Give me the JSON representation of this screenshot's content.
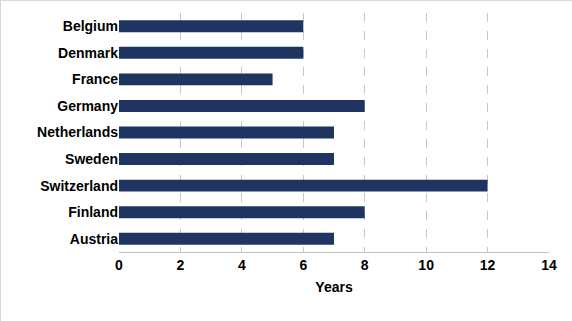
{
  "chart_data": {
    "type": "bar",
    "orientation": "horizontal",
    "categories": [
      "Belgium",
      "Denmark",
      "France",
      "Germany",
      "Netherlands",
      "Sweden",
      "Switzerland",
      "Finland",
      "Austria"
    ],
    "values": [
      6,
      6,
      5,
      8,
      7,
      7,
      12,
      8,
      7
    ],
    "color": "#1f3461",
    "xlabel": "Years",
    "xlim": [
      0,
      14
    ],
    "xticks": [
      0,
      2,
      4,
      6,
      8,
      10,
      12,
      14
    ],
    "grid": true
  }
}
